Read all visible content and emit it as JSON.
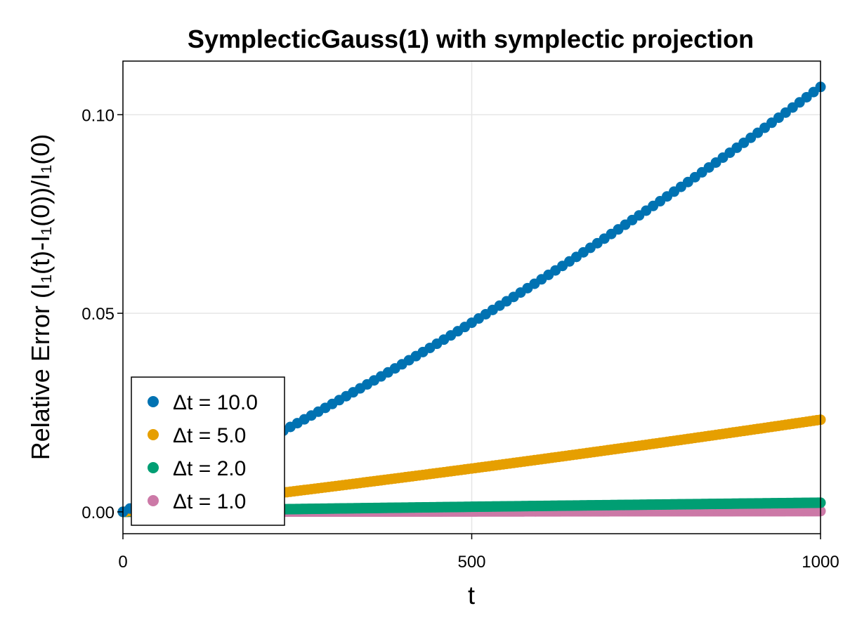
{
  "chart_data": {
    "type": "scatter",
    "title": "SymplecticGauss(1) with symplectic projection",
    "xlabel": "t",
    "ylabel": "Relative Error (I₁(t)-I₁(0))/I₁(0)",
    "xlim": [
      0,
      1000
    ],
    "ylim": [
      -0.0055,
      0.1135
    ],
    "xticks": [
      0,
      500,
      1000
    ],
    "xtick_labels": [
      "0",
      "500",
      "1000"
    ],
    "yticks": [
      0.0,
      0.05,
      0.1
    ],
    "ytick_labels": [
      "0.00",
      "0.05",
      "0.10"
    ],
    "grid": true,
    "legend_position": "bottom-left",
    "series": [
      {
        "name": "Δt = 10.0",
        "color": "#0072b2",
        "dt": 10.0,
        "x": [
          0,
          1000
        ],
        "y": [
          0.0,
          0.107
        ]
      },
      {
        "name": "Δt = 5.0",
        "color": "#e69f00",
        "dt": 5.0,
        "x": [
          0,
          1000
        ],
        "y": [
          0.0,
          0.0232
        ]
      },
      {
        "name": "Δt = 2.0",
        "color": "#009e73",
        "dt": 2.0,
        "x": [
          0,
          1000
        ],
        "y": [
          0.0,
          0.0023
        ]
      },
      {
        "name": "Δt = 1.0",
        "color": "#cc79a7",
        "dt": 1.0,
        "x": [
          0,
          1000
        ],
        "y": [
          0.0,
          0.0002
        ]
      }
    ]
  }
}
